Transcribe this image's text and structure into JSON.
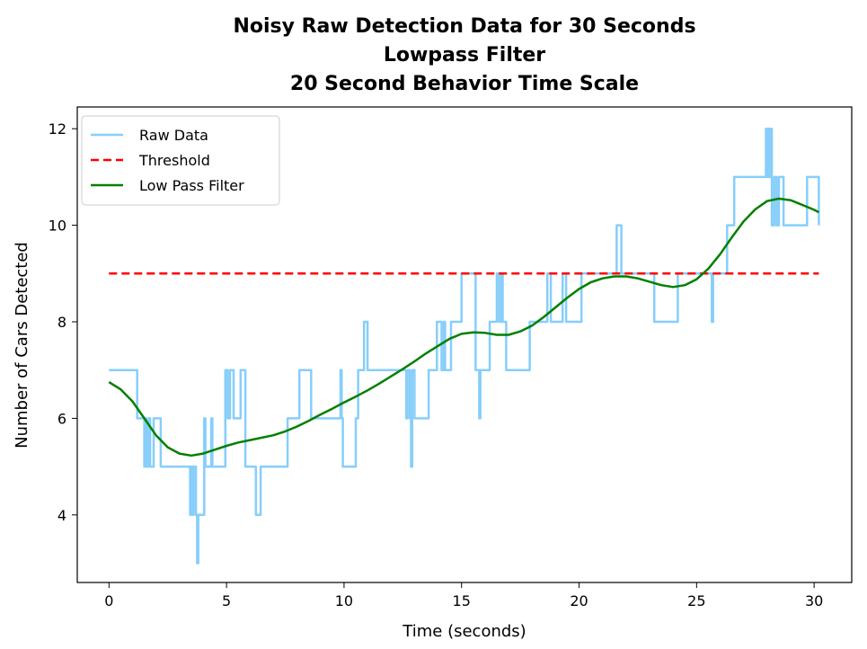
{
  "chart_data": {
    "type": "line",
    "title_lines": [
      "Noisy Raw Detection Data for 30 Seconds",
      "Lowpass Filter",
      "20 Second Behavior Time Scale"
    ],
    "xlabel": "Time (seconds)",
    "ylabel": "Number of Cars Detected",
    "xlim": [
      -1.35,
      31.6
    ],
    "ylim": [
      2.6,
      12.45
    ],
    "xticks": [
      0,
      5,
      10,
      15,
      20,
      25,
      30
    ],
    "yticks": [
      4,
      6,
      8,
      10,
      12
    ],
    "grid": false,
    "legend_position": "top-left",
    "series": [
      {
        "name": "Raw Data",
        "color": "#87CEFA",
        "dash": "",
        "step": true,
        "points": [
          [
            0,
            7
          ],
          [
            1.2,
            7
          ],
          [
            1.2,
            6
          ],
          [
            1.5,
            6
          ],
          [
            1.5,
            5
          ],
          [
            1.55,
            6
          ],
          [
            1.6,
            5
          ],
          [
            1.7,
            6
          ],
          [
            1.75,
            5
          ],
          [
            1.9,
            5
          ],
          [
            1.9,
            6
          ],
          [
            2.2,
            6
          ],
          [
            2.2,
            5
          ],
          [
            3.4,
            5
          ],
          [
            3.45,
            4
          ],
          [
            3.5,
            5
          ],
          [
            3.55,
            4
          ],
          [
            3.6,
            5
          ],
          [
            3.7,
            4
          ],
          [
            3.75,
            3
          ],
          [
            3.8,
            4
          ],
          [
            4.0,
            4
          ],
          [
            4.05,
            6
          ],
          [
            4.1,
            5
          ],
          [
            4.3,
            5
          ],
          [
            4.35,
            6
          ],
          [
            4.4,
            5
          ],
          [
            4.9,
            5
          ],
          [
            4.95,
            7
          ],
          [
            5.05,
            7
          ],
          [
            5.05,
            6
          ],
          [
            5.15,
            7
          ],
          [
            5.3,
            7
          ],
          [
            5.3,
            6
          ],
          [
            5.6,
            6
          ],
          [
            5.6,
            7
          ],
          [
            5.8,
            7
          ],
          [
            5.8,
            5
          ],
          [
            6.2,
            5
          ],
          [
            6.25,
            4
          ],
          [
            6.45,
            4
          ],
          [
            6.45,
            5
          ],
          [
            7.6,
            5
          ],
          [
            7.6,
            6
          ],
          [
            8.1,
            6
          ],
          [
            8.1,
            7
          ],
          [
            8.6,
            7
          ],
          [
            8.6,
            6
          ],
          [
            9.8,
            6
          ],
          [
            9.85,
            7
          ],
          [
            9.9,
            6
          ],
          [
            9.95,
            5
          ],
          [
            10.5,
            5
          ],
          [
            10.5,
            6
          ],
          [
            10.6,
            6
          ],
          [
            10.6,
            7
          ],
          [
            10.8,
            7
          ],
          [
            10.85,
            8
          ],
          [
            11.0,
            8
          ],
          [
            11.0,
            7
          ],
          [
            12.6,
            7
          ],
          [
            12.65,
            6
          ],
          [
            12.7,
            7
          ],
          [
            12.8,
            6
          ],
          [
            12.85,
            5
          ],
          [
            12.9,
            7
          ],
          [
            13.0,
            7
          ],
          [
            13.0,
            6
          ],
          [
            13.6,
            6
          ],
          [
            13.6,
            7
          ],
          [
            13.9,
            7
          ],
          [
            13.95,
            8
          ],
          [
            14.1,
            8
          ],
          [
            14.15,
            7
          ],
          [
            14.25,
            8
          ],
          [
            14.3,
            7
          ],
          [
            14.5,
            7
          ],
          [
            14.55,
            8
          ],
          [
            15.0,
            8
          ],
          [
            15.0,
            9
          ],
          [
            15.6,
            9
          ],
          [
            15.6,
            7
          ],
          [
            15.7,
            7
          ],
          [
            15.75,
            6
          ],
          [
            15.8,
            7
          ],
          [
            16.2,
            7
          ],
          [
            16.2,
            8
          ],
          [
            16.45,
            8
          ],
          [
            16.5,
            9
          ],
          [
            16.6,
            8
          ],
          [
            16.7,
            9
          ],
          [
            16.75,
            8
          ],
          [
            16.85,
            8
          ],
          [
            16.9,
            7
          ],
          [
            17.9,
            7
          ],
          [
            17.9,
            8
          ],
          [
            18.6,
            8
          ],
          [
            18.65,
            9
          ],
          [
            18.8,
            9
          ],
          [
            18.8,
            8
          ],
          [
            19.25,
            8
          ],
          [
            19.3,
            9
          ],
          [
            19.45,
            9
          ],
          [
            19.45,
            8
          ],
          [
            20.1,
            8
          ],
          [
            20.1,
            9
          ],
          [
            21.6,
            9
          ],
          [
            21.6,
            10
          ],
          [
            21.8,
            10
          ],
          [
            21.8,
            9
          ],
          [
            23.2,
            9
          ],
          [
            23.2,
            8
          ],
          [
            24.2,
            8
          ],
          [
            24.2,
            9
          ],
          [
            25.6,
            9
          ],
          [
            25.65,
            8
          ],
          [
            25.7,
            9
          ],
          [
            26.3,
            9
          ],
          [
            26.3,
            10
          ],
          [
            26.6,
            10
          ],
          [
            26.6,
            11
          ],
          [
            27.9,
            11
          ],
          [
            27.95,
            12
          ],
          [
            28.0,
            11
          ],
          [
            28.05,
            12
          ],
          [
            28.1,
            11
          ],
          [
            28.15,
            12
          ],
          [
            28.2,
            10
          ],
          [
            28.3,
            11
          ],
          [
            28.4,
            10
          ],
          [
            28.5,
            11
          ],
          [
            28.7,
            11
          ],
          [
            28.7,
            10
          ],
          [
            29.7,
            10
          ],
          [
            29.7,
            11
          ],
          [
            30.2,
            11
          ],
          [
            30.2,
            10
          ]
        ]
      },
      {
        "name": "Threshold",
        "color": "#ff0000",
        "dash": "9 5",
        "step": false,
        "points": [
          [
            0,
            9
          ],
          [
            30.2,
            9
          ]
        ]
      },
      {
        "name": "Low Pass Filter",
        "color": "#008000",
        "dash": "",
        "step": false,
        "points": [
          [
            0,
            6.75
          ],
          [
            0.5,
            6.6
          ],
          [
            1,
            6.35
          ],
          [
            1.5,
            6.0
          ],
          [
            2,
            5.65
          ],
          [
            2.5,
            5.4
          ],
          [
            3,
            5.27
          ],
          [
            3.5,
            5.23
          ],
          [
            4,
            5.27
          ],
          [
            4.5,
            5.35
          ],
          [
            5,
            5.43
          ],
          [
            5.5,
            5.5
          ],
          [
            6,
            5.55
          ],
          [
            6.5,
            5.6
          ],
          [
            7,
            5.65
          ],
          [
            7.5,
            5.73
          ],
          [
            8,
            5.83
          ],
          [
            8.5,
            5.95
          ],
          [
            9,
            6.08
          ],
          [
            9.5,
            6.2
          ],
          [
            10,
            6.33
          ],
          [
            10.5,
            6.45
          ],
          [
            11,
            6.58
          ],
          [
            11.5,
            6.72
          ],
          [
            12,
            6.87
          ],
          [
            12.5,
            7.02
          ],
          [
            13,
            7.18
          ],
          [
            13.5,
            7.35
          ],
          [
            14,
            7.5
          ],
          [
            14.5,
            7.65
          ],
          [
            15,
            7.75
          ],
          [
            15.5,
            7.78
          ],
          [
            16,
            7.77
          ],
          [
            16.5,
            7.73
          ],
          [
            17,
            7.73
          ],
          [
            17.5,
            7.8
          ],
          [
            18,
            7.92
          ],
          [
            18.5,
            8.1
          ],
          [
            19,
            8.3
          ],
          [
            19.5,
            8.5
          ],
          [
            20,
            8.68
          ],
          [
            20.5,
            8.82
          ],
          [
            21,
            8.9
          ],
          [
            21.5,
            8.94
          ],
          [
            22,
            8.94
          ],
          [
            22.5,
            8.9
          ],
          [
            23,
            8.83
          ],
          [
            23.5,
            8.76
          ],
          [
            24,
            8.72
          ],
          [
            24.5,
            8.76
          ],
          [
            25,
            8.88
          ],
          [
            25.5,
            9.1
          ],
          [
            26,
            9.4
          ],
          [
            26.5,
            9.75
          ],
          [
            27,
            10.08
          ],
          [
            27.5,
            10.33
          ],
          [
            28,
            10.5
          ],
          [
            28.5,
            10.55
          ],
          [
            29,
            10.52
          ],
          [
            29.5,
            10.42
          ],
          [
            30,
            10.32
          ],
          [
            30.2,
            10.27
          ]
        ]
      }
    ]
  }
}
